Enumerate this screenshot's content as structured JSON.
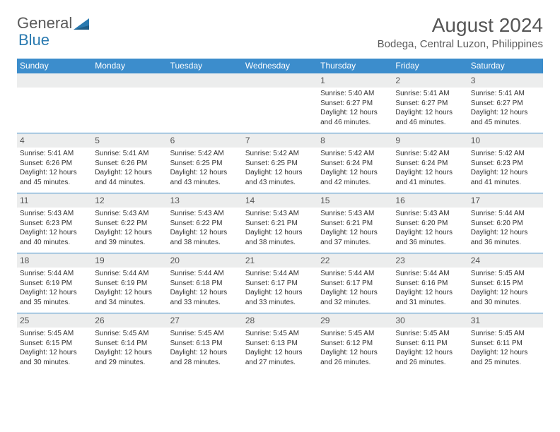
{
  "logo": {
    "general": "General",
    "blue": "Blue"
  },
  "title": "August 2024",
  "location": "Bodega, Central Luzon, Philippines",
  "colors": {
    "header_bg": "#3c8dcc",
    "header_fg": "#ffffff",
    "daynum_bg": "#eceded",
    "border": "#3c8dcc",
    "text": "#333333",
    "logo_blue": "#2a7ab0",
    "logo_gray": "#5a5a5a"
  },
  "weekdays": [
    "Sunday",
    "Monday",
    "Tuesday",
    "Wednesday",
    "Thursday",
    "Friday",
    "Saturday"
  ],
  "weeks": [
    [
      null,
      null,
      null,
      null,
      {
        "n": "1",
        "sr": "5:40 AM",
        "ss": "6:27 PM",
        "dl": "12 hours and 46 minutes."
      },
      {
        "n": "2",
        "sr": "5:41 AM",
        "ss": "6:27 PM",
        "dl": "12 hours and 46 minutes."
      },
      {
        "n": "3",
        "sr": "5:41 AM",
        "ss": "6:27 PM",
        "dl": "12 hours and 45 minutes."
      }
    ],
    [
      {
        "n": "4",
        "sr": "5:41 AM",
        "ss": "6:26 PM",
        "dl": "12 hours and 45 minutes."
      },
      {
        "n": "5",
        "sr": "5:41 AM",
        "ss": "6:26 PM",
        "dl": "12 hours and 44 minutes."
      },
      {
        "n": "6",
        "sr": "5:42 AM",
        "ss": "6:25 PM",
        "dl": "12 hours and 43 minutes."
      },
      {
        "n": "7",
        "sr": "5:42 AM",
        "ss": "6:25 PM",
        "dl": "12 hours and 43 minutes."
      },
      {
        "n": "8",
        "sr": "5:42 AM",
        "ss": "6:24 PM",
        "dl": "12 hours and 42 minutes."
      },
      {
        "n": "9",
        "sr": "5:42 AM",
        "ss": "6:24 PM",
        "dl": "12 hours and 41 minutes."
      },
      {
        "n": "10",
        "sr": "5:42 AM",
        "ss": "6:23 PM",
        "dl": "12 hours and 41 minutes."
      }
    ],
    [
      {
        "n": "11",
        "sr": "5:43 AM",
        "ss": "6:23 PM",
        "dl": "12 hours and 40 minutes."
      },
      {
        "n": "12",
        "sr": "5:43 AM",
        "ss": "6:22 PM",
        "dl": "12 hours and 39 minutes."
      },
      {
        "n": "13",
        "sr": "5:43 AM",
        "ss": "6:22 PM",
        "dl": "12 hours and 38 minutes."
      },
      {
        "n": "14",
        "sr": "5:43 AM",
        "ss": "6:21 PM",
        "dl": "12 hours and 38 minutes."
      },
      {
        "n": "15",
        "sr": "5:43 AM",
        "ss": "6:21 PM",
        "dl": "12 hours and 37 minutes."
      },
      {
        "n": "16",
        "sr": "5:43 AM",
        "ss": "6:20 PM",
        "dl": "12 hours and 36 minutes."
      },
      {
        "n": "17",
        "sr": "5:44 AM",
        "ss": "6:20 PM",
        "dl": "12 hours and 36 minutes."
      }
    ],
    [
      {
        "n": "18",
        "sr": "5:44 AM",
        "ss": "6:19 PM",
        "dl": "12 hours and 35 minutes."
      },
      {
        "n": "19",
        "sr": "5:44 AM",
        "ss": "6:19 PM",
        "dl": "12 hours and 34 minutes."
      },
      {
        "n": "20",
        "sr": "5:44 AM",
        "ss": "6:18 PM",
        "dl": "12 hours and 33 minutes."
      },
      {
        "n": "21",
        "sr": "5:44 AM",
        "ss": "6:17 PM",
        "dl": "12 hours and 33 minutes."
      },
      {
        "n": "22",
        "sr": "5:44 AM",
        "ss": "6:17 PM",
        "dl": "12 hours and 32 minutes."
      },
      {
        "n": "23",
        "sr": "5:44 AM",
        "ss": "6:16 PM",
        "dl": "12 hours and 31 minutes."
      },
      {
        "n": "24",
        "sr": "5:45 AM",
        "ss": "6:15 PM",
        "dl": "12 hours and 30 minutes."
      }
    ],
    [
      {
        "n": "25",
        "sr": "5:45 AM",
        "ss": "6:15 PM",
        "dl": "12 hours and 30 minutes."
      },
      {
        "n": "26",
        "sr": "5:45 AM",
        "ss": "6:14 PM",
        "dl": "12 hours and 29 minutes."
      },
      {
        "n": "27",
        "sr": "5:45 AM",
        "ss": "6:13 PM",
        "dl": "12 hours and 28 minutes."
      },
      {
        "n": "28",
        "sr": "5:45 AM",
        "ss": "6:13 PM",
        "dl": "12 hours and 27 minutes."
      },
      {
        "n": "29",
        "sr": "5:45 AM",
        "ss": "6:12 PM",
        "dl": "12 hours and 26 minutes."
      },
      {
        "n": "30",
        "sr": "5:45 AM",
        "ss": "6:11 PM",
        "dl": "12 hours and 26 minutes."
      },
      {
        "n": "31",
        "sr": "5:45 AM",
        "ss": "6:11 PM",
        "dl": "12 hours and 25 minutes."
      }
    ]
  ],
  "labels": {
    "sunrise": "Sunrise: ",
    "sunset": "Sunset: ",
    "daylight": "Daylight: "
  }
}
